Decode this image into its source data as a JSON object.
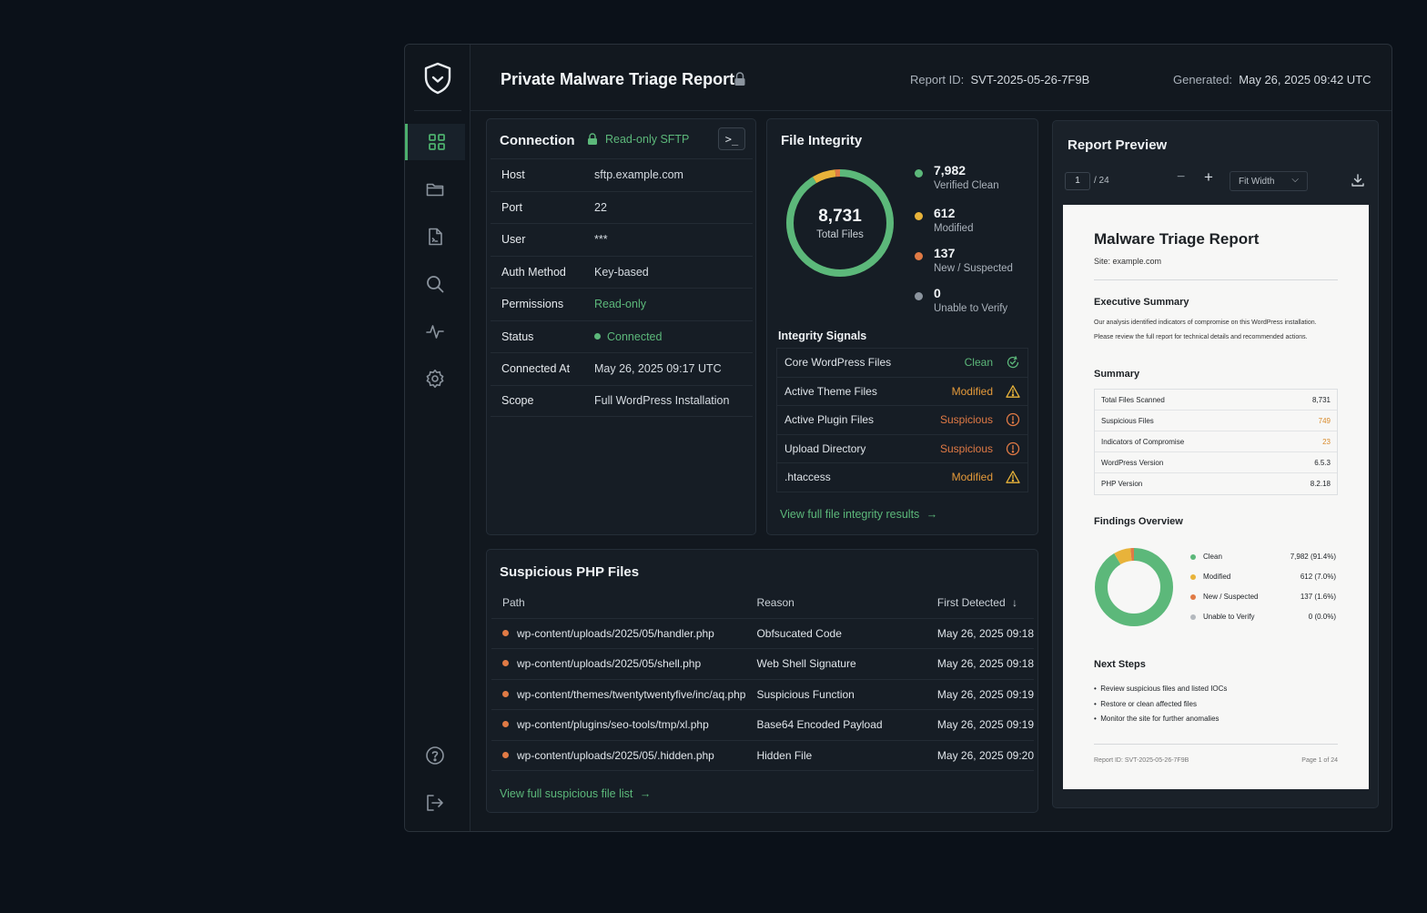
{
  "header": {
    "title": "Private Malware Triage Report",
    "report_id_label": "Report ID:",
    "report_id": "SVT-2025-05-26-7F9B",
    "generated_label": "Generated:",
    "generated": "May 26, 2025 09:42 UTC"
  },
  "sidebar": {
    "items": [
      {
        "icon": "dashboard-grid-icon",
        "active": true
      },
      {
        "icon": "folder-icon"
      },
      {
        "icon": "document-icon"
      },
      {
        "icon": "search-icon"
      },
      {
        "icon": "activity-icon"
      },
      {
        "icon": "gear-icon"
      }
    ],
    "bottom": [
      {
        "icon": "help-icon"
      },
      {
        "icon": "logout-icon"
      }
    ]
  },
  "connection": {
    "title": "Connection",
    "badge": "Read-only SFTP",
    "terminal_button": ">_",
    "rows": [
      {
        "key": "Host",
        "value": "sftp.example.com"
      },
      {
        "key": "Port",
        "value": "22"
      },
      {
        "key": "User",
        "value": "***"
      },
      {
        "key": "Auth Method",
        "value": "Key-based"
      },
      {
        "key": "Permissions",
        "value": "Read-only"
      },
      {
        "key": "Status",
        "value": "Connected"
      },
      {
        "key": "Connected At",
        "value": "May 26, 2025 09:17 UTC"
      },
      {
        "key": "Scope",
        "value": "Full WordPress Installation"
      }
    ]
  },
  "file_integrity": {
    "title": "File Integrity",
    "total": "8,731",
    "total_label": "Total Files",
    "legend": [
      {
        "value": "7,982",
        "label": "Verified Clean",
        "color": "#5cb87a"
      },
      {
        "value": "612",
        "label": "Modified",
        "color": "#e8b33a"
      },
      {
        "value": "137",
        "label": "New / Suspected",
        "color": "#e07a45"
      },
      {
        "value": "0",
        "label": "Unable to Verify",
        "color": "#8b949e"
      }
    ],
    "signals_title": "Integrity Signals",
    "signals": [
      {
        "name": "Core WordPress Files",
        "status": "Clean",
        "icon": "refresh-check-icon"
      },
      {
        "name": "Active Theme Files",
        "status": "Modified",
        "icon": "warning-triangle-icon"
      },
      {
        "name": "Active Plugin Files",
        "status": "Suspicious",
        "icon": "alert-circle-icon"
      },
      {
        "name": "Upload Directory",
        "status": "Suspicious",
        "icon": "alert-circle-icon"
      },
      {
        "name": ".htaccess",
        "status": "Modified",
        "icon": "warning-triangle-icon"
      }
    ],
    "link": "View full file integrity results"
  },
  "suspicious": {
    "title": "Suspicious PHP Files",
    "columns": [
      "Path",
      "Reason",
      "First Detected"
    ],
    "rows": [
      {
        "path": "wp-content/uploads/2025/05/handler.php",
        "reason": "Obfsucated Code",
        "date": "May 26, 2025 09:18"
      },
      {
        "path": "wp-content/uploads/2025/05/shell.php",
        "reason": "Web Shell Signature",
        "date": "May 26, 2025 09:18"
      },
      {
        "path": "wp-content/themes/twentytwentyfive/inc/aq.php",
        "reason": "Suspicious Function",
        "date": "May 26, 2025 09:19"
      },
      {
        "path": "wp-content/plugins/seo-tools/tmp/xl.php",
        "reason": "Base64 Encoded Payload",
        "date": "May 26, 2025 09:19"
      },
      {
        "path": "wp-content/uploads/2025/05/.hidden.php",
        "reason": "Hidden File",
        "date": "May 26, 2025 09:20"
      }
    ],
    "link": "View full suspicious file list"
  },
  "preview": {
    "title": "Report Preview",
    "page": "1",
    "pages": "/ 24",
    "zoom": "Fit Width",
    "doc": {
      "title": "Malware Triage Report",
      "site": "Site: example.com",
      "exec_title": "Executive Summary",
      "exec_line1": "Our analysis identified indicators of compromise on this WordPress installation.",
      "exec_line2": "Please review the full report for technical details and recommended actions.",
      "summary_title": "Summary",
      "summary": [
        {
          "k": "Total Files Scanned",
          "v": "8,731"
        },
        {
          "k": "Suspicious Files",
          "v": "749"
        },
        {
          "k": "Indicators of Compromise",
          "v": "23"
        },
        {
          "k": "WordPress Version",
          "v": "6.5.3"
        },
        {
          "k": "PHP Version",
          "v": "8.2.18"
        }
      ],
      "findings_title": "Findings Overview",
      "findings": [
        {
          "label": "Clean",
          "value": "7,982 (91.4%)",
          "pct": 91.4,
          "color": "#5cb87a"
        },
        {
          "label": "Modified",
          "value": "612 (7.0%)",
          "pct": 7.0,
          "color": "#e8b33a"
        },
        {
          "label": "New / Suspected",
          "value": "137 (1.6%)",
          "pct": 1.6,
          "color": "#e07a45"
        },
        {
          "label": "Unable to Verify",
          "value": "0 (0.0%)",
          "pct": 0,
          "color": "#b4b9be"
        }
      ],
      "next_title": "Next Steps",
      "next": [
        "Review suspicious files and listed IOCs",
        "Restore or clean affected files",
        "Monitor the site for further anomalies"
      ],
      "footer_id": "Report ID: SVT-2025-05-26-7F9B",
      "footer_page": "Page 1 of 24"
    }
  }
}
